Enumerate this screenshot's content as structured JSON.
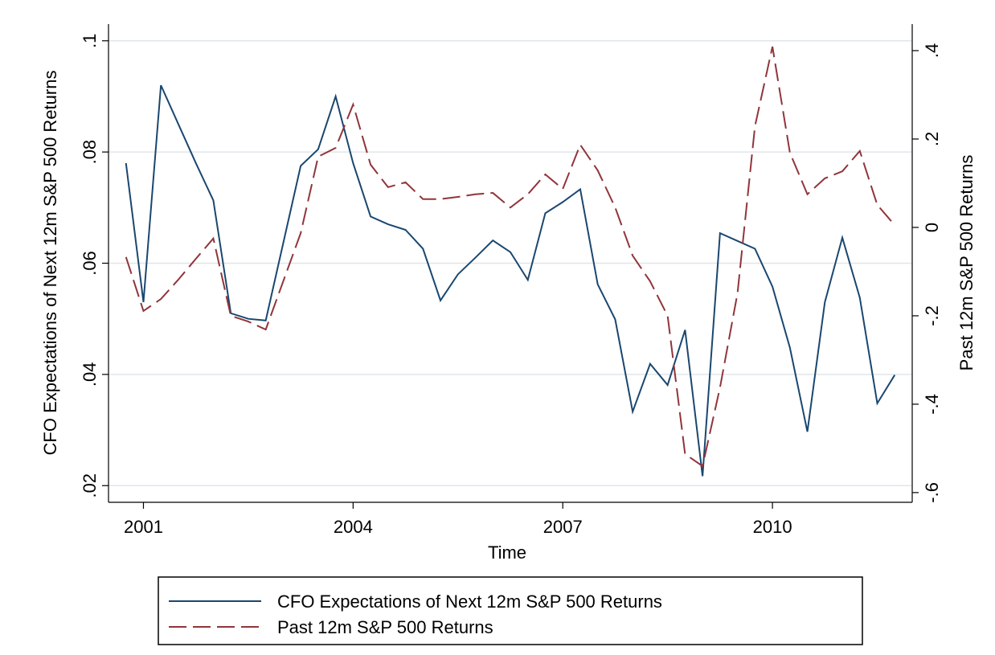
{
  "chart_data": {
    "type": "line",
    "xlabel": "Time",
    "ylabel": "CFO Expectations of Next 12m S&P 500 Returns",
    "y2label": "Past 12m S&P 500 Returns",
    "x": [
      2000.75,
      2001.0,
      2001.25,
      2001.5,
      2001.75,
      2002.0,
      2002.25,
      2002.5,
      2002.75,
      2003.0,
      2003.25,
      2003.5,
      2003.75,
      2004.0,
      2004.25,
      2004.5,
      2004.75,
      2005.0,
      2005.25,
      2005.5,
      2005.75,
      2006.0,
      2006.25,
      2006.5,
      2006.75,
      2007.0,
      2007.25,
      2007.5,
      2007.75,
      2008.0,
      2008.25,
      2008.5,
      2008.75,
      2009.0,
      2009.25,
      2009.5,
      2009.75,
      2010.0,
      2010.25,
      2010.5,
      2010.75,
      2011.0,
      2011.25,
      2011.5,
      2011.75
    ],
    "series": [
      {
        "name": "CFO Expectations of Next 12m S&P 500 Returns",
        "color": "#1a476f",
        "dashed": false,
        "axis": "y",
        "values": [
          0.078,
          0.053,
          0.092,
          0.085,
          0.078,
          0.0713,
          0.051,
          0.05,
          0.0497,
          0.0636,
          0.0775,
          0.0805,
          0.09,
          0.078,
          0.0684,
          0.067,
          0.066,
          0.0626,
          0.0533,
          0.058,
          0.061,
          0.0641,
          0.062,
          0.057,
          0.069,
          0.071,
          0.0733,
          0.0562,
          0.0499,
          0.0333,
          0.0419,
          0.0381,
          0.048,
          0.0217,
          0.0654,
          0.064,
          0.0626,
          0.0558,
          0.0448,
          0.0297,
          0.053,
          0.0646,
          0.0538,
          0.0348,
          0.0399
        ]
      },
      {
        "name": "Past 12m S&P 500 Returns",
        "color": "#90353b",
        "dashed": true,
        "axis": "y2",
        "values": [
          -0.067,
          -0.189,
          -0.162,
          -0.118,
          -0.071,
          -0.025,
          -0.2,
          -0.213,
          -0.231,
          -0.122,
          -0.013,
          0.16,
          0.18,
          0.278,
          0.142,
          0.091,
          0.102,
          0.064,
          0.064,
          0.069,
          0.075,
          0.078,
          0.045,
          0.075,
          0.12,
          0.087,
          0.187,
          0.129,
          0.045,
          -0.064,
          -0.122,
          -0.2,
          -0.513,
          -0.54,
          -0.362,
          -0.149,
          0.229,
          0.409,
          0.169,
          0.075,
          0.111,
          0.127,
          0.173,
          0.051,
          0.005
        ]
      }
    ],
    "xlim": [
      2000.5,
      2012.0
    ],
    "xticks": [
      2001,
      2004,
      2007,
      2010
    ],
    "ylim": [
      0.017,
      0.103
    ],
    "yticks": [
      {
        "value": 0.02,
        "label": ".02"
      },
      {
        "value": 0.04,
        "label": ".04"
      },
      {
        "value": 0.06,
        "label": ".06"
      },
      {
        "value": 0.08,
        "label": ".08"
      },
      {
        "value": 0.1,
        "label": ".1"
      }
    ],
    "y2lim": [
      -0.622,
      0.46
    ],
    "y2ticks": [
      {
        "value": -0.6,
        "label": "-.6"
      },
      {
        "value": -0.4,
        "label": "-.4"
      },
      {
        "value": -0.2,
        "label": "-.2"
      },
      0,
      {
        "value": 0.2,
        "label": ".2"
      },
      {
        "value": 0.4,
        "label": ".4"
      }
    ],
    "grid": true
  }
}
